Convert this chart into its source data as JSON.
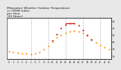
{
  "title": "Milwaukee Weather Outdoor Temperature\nvs THSW Index\nper Hour\n(24 Hours)",
  "title_fontsize": 3.2,
  "background_color": "#e8e8e8",
  "plot_bg_color": "#ffffff",
  "grid_color": "#999999",
  "hours": [
    0,
    1,
    2,
    3,
    4,
    5,
    6,
    7,
    8,
    9,
    10,
    11,
    12,
    13,
    14,
    15,
    16,
    17,
    18,
    19,
    20,
    21,
    22,
    23
  ],
  "temp": [
    36,
    35,
    34,
    33,
    33,
    32,
    33,
    35,
    39,
    44,
    50,
    56,
    60,
    63,
    65,
    66,
    65,
    63,
    59,
    54,
    49,
    45,
    42,
    39
  ],
  "thsw": [
    null,
    null,
    null,
    null,
    null,
    null,
    null,
    null,
    null,
    null,
    52,
    61,
    70,
    75,
    77,
    77,
    74,
    67,
    60,
    53,
    null,
    null,
    null,
    null
  ],
  "thsw_line_x": [
    13,
    15
  ],
  "thsw_line_y": [
    77,
    77
  ],
  "temp_color": "#ff8c00",
  "thsw_color": "#cc0000",
  "dark_dot_color": "#222222",
  "ylim": [
    25,
    85
  ],
  "yticks": [
    30,
    40,
    50,
    60,
    70,
    80
  ],
  "ytick_labels": [
    "30",
    "40",
    "50",
    "60",
    "70",
    "80"
  ],
  "xlim": [
    -0.5,
    23.5
  ],
  "xticks": [
    0,
    1,
    2,
    3,
    4,
    5,
    6,
    7,
    8,
    9,
    10,
    11,
    12,
    13,
    14,
    15,
    16,
    17,
    18,
    19,
    20,
    21,
    22,
    23
  ],
  "xtick_labels": [
    "0",
    "1",
    "2",
    "3",
    "4",
    "5",
    "6",
    "7",
    "8",
    "9",
    "10",
    "11",
    "12",
    "13",
    "14",
    "15",
    "16",
    "17",
    "18",
    "19",
    "20",
    "21",
    "22",
    "23"
  ],
  "vgrid_positions": [
    5,
    9,
    13,
    17,
    21
  ],
  "temp_marker_size": 2.5,
  "thsw_marker_size": 2.5
}
